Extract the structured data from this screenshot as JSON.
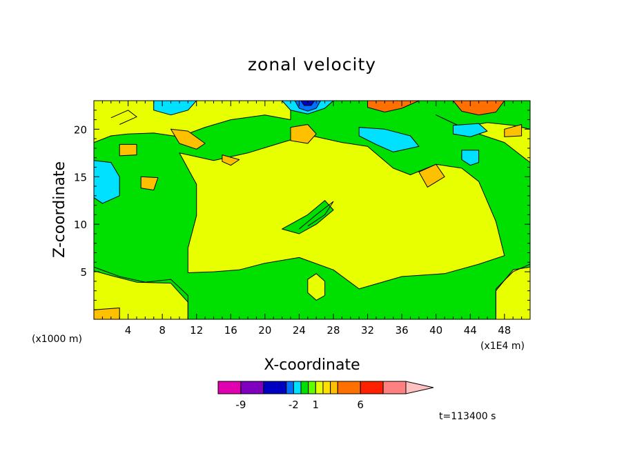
{
  "chart_data": {
    "type": "heatmap",
    "title": "zonal velocity",
    "xlabel": "X-coordinate",
    "ylabel": "Z-coordinate",
    "x_unit": "(x1E4 m)",
    "y_unit": "(x1000 m)",
    "xlim": [
      0,
      51
    ],
    "ylim": [
      0,
      23
    ],
    "x_ticks": [
      4,
      8,
      12,
      16,
      20,
      24,
      28,
      32,
      36,
      40,
      44,
      48
    ],
    "y_ticks": [
      5,
      10,
      15,
      20
    ],
    "time_label": "t=113400 s",
    "colorbar": {
      "levels": [
        -12,
        -9,
        -6,
        -3,
        -2,
        -1,
        0,
        1,
        2,
        3,
        4,
        6,
        8,
        10
      ],
      "colors": [
        "#e000b0",
        "#8000c0",
        "#0000c0",
        "#0070ff",
        "#00e0ff",
        "#00e000",
        "#60ff00",
        "#e8ff00",
        "#ffe000",
        "#ffc000",
        "#ff7000",
        "#ff2000",
        "#ff8080",
        "#ffc0c0"
      ],
      "labels": [
        {
          "text": "-9",
          "value": -9
        },
        {
          "text": "-2",
          "value": -2
        },
        {
          "text": "1",
          "value": 1
        },
        {
          "text": "6",
          "value": 6
        }
      ]
    },
    "background_color": "#00e000",
    "regions": [
      {
        "name": "yellow-main",
        "color": "#e8ff00",
        "points": [
          [
            10,
            17.5
          ],
          [
            14,
            16.7
          ],
          [
            18,
            17.5
          ],
          [
            22,
            18.6
          ],
          [
            25,
            19.4
          ],
          [
            29,
            18.6
          ],
          [
            32,
            18.2
          ],
          [
            35,
            15.9
          ],
          [
            37,
            15.2
          ],
          [
            40,
            16.3
          ],
          [
            43,
            15.9
          ],
          [
            45,
            14.5
          ],
          [
            46,
            12.4
          ],
          [
            47,
            10.3
          ],
          [
            48,
            6.7
          ],
          [
            45,
            5.8
          ],
          [
            41,
            4.8
          ],
          [
            36,
            4.5
          ],
          [
            31,
            3.2
          ],
          [
            28,
            5.2
          ],
          [
            24,
            6.5
          ],
          [
            20,
            5.9
          ],
          [
            17,
            5.2
          ],
          [
            14,
            5.0
          ],
          [
            11,
            4.9
          ],
          [
            11,
            7.5
          ],
          [
            12,
            10.9
          ],
          [
            12,
            14.2
          ],
          [
            10,
            17.5
          ]
        ]
      },
      {
        "name": "yellow-top",
        "color": "#e8ff00",
        "points": [
          [
            0,
            23
          ],
          [
            12,
            23
          ],
          [
            23,
            23
          ],
          [
            23,
            21
          ],
          [
            20,
            21.5
          ],
          [
            16,
            21
          ],
          [
            13,
            20.2
          ],
          [
            10,
            19.2
          ],
          [
            7,
            19.6
          ],
          [
            4,
            19.5
          ],
          [
            2,
            19.3
          ],
          [
            0,
            18.6
          ]
        ]
      },
      {
        "name": "yellow-right-top",
        "color": "#e8ff00",
        "points": [
          [
            40,
            21.5
          ],
          [
            43,
            20.2
          ],
          [
            46,
            20.7
          ],
          [
            49,
            20.4
          ],
          [
            51,
            20.0
          ],
          [
            51,
            16.5
          ],
          [
            48,
            18.6
          ],
          [
            44,
            19.8
          ],
          [
            40,
            21.5
          ]
        ]
      },
      {
        "name": "yellow-bottom-left",
        "color": "#e8ff00",
        "points": [
          [
            0,
            0
          ],
          [
            11,
            0
          ],
          [
            11,
            1.8
          ],
          [
            9,
            3.8
          ],
          [
            5,
            3.9
          ],
          [
            2,
            4.6
          ],
          [
            0,
            5.1
          ]
        ]
      },
      {
        "name": "yellow-bottom-right",
        "color": "#e8ff00",
        "points": [
          [
            47,
            0
          ],
          [
            51,
            0
          ],
          [
            51,
            5.5
          ],
          [
            49,
            5.2
          ],
          [
            47,
            3.0
          ]
        ]
      },
      {
        "name": "yellow-blob-bottom",
        "color": "#e8ff00",
        "points": [
          [
            25,
            4.2
          ],
          [
            26,
            4.8
          ],
          [
            27,
            4.0
          ],
          [
            27,
            2.5
          ],
          [
            26,
            2.0
          ],
          [
            25,
            2.8
          ]
        ]
      },
      {
        "name": "green-wedge",
        "color": "#00e000",
        "points": [
          [
            22,
            9.5
          ],
          [
            25,
            11.0
          ],
          [
            27,
            12.5
          ],
          [
            28,
            11.5
          ],
          [
            26,
            10.0
          ],
          [
            24,
            9.0
          ]
        ]
      },
      {
        "name": "cyan-left",
        "color": "#00e0ff",
        "points": [
          [
            0,
            16.7
          ],
          [
            2,
            16.5
          ],
          [
            3,
            15.0
          ],
          [
            3,
            13.0
          ],
          [
            1,
            12.2
          ],
          [
            0,
            12.8
          ]
        ]
      },
      {
        "name": "cyan-top-left",
        "color": "#00e0ff",
        "points": [
          [
            7,
            23
          ],
          [
            12,
            23
          ],
          [
            11,
            22.0
          ],
          [
            9,
            21.5
          ],
          [
            7,
            22.0
          ]
        ]
      },
      {
        "name": "cyan-right",
        "color": "#00e0ff",
        "points": [
          [
            31,
            20.2
          ],
          [
            34,
            20.0
          ],
          [
            37,
            19.3
          ],
          [
            38,
            18.2
          ],
          [
            35,
            17.6
          ],
          [
            33,
            18.4
          ],
          [
            31,
            19.3
          ]
        ]
      },
      {
        "name": "cyan-right-2",
        "color": "#00e0ff",
        "points": [
          [
            42,
            20.4
          ],
          [
            45,
            20.6
          ],
          [
            46,
            19.8
          ],
          [
            44,
            19.2
          ],
          [
            42,
            19.5
          ]
        ]
      },
      {
        "name": "cyan-right-3",
        "color": "#00e0ff",
        "points": [
          [
            43,
            17.8
          ],
          [
            45,
            17.8
          ],
          [
            45,
            16.5
          ],
          [
            44,
            16.2
          ],
          [
            43,
            16.8
          ]
        ]
      },
      {
        "name": "cyan-top-center",
        "color": "#00e0ff",
        "points": [
          [
            22,
            23
          ],
          [
            28,
            23
          ],
          [
            27,
            22.2
          ],
          [
            25,
            21.6
          ],
          [
            23,
            22.0
          ]
        ]
      },
      {
        "name": "blue-top",
        "color": "#0070ff",
        "points": [
          [
            23.5,
            23
          ],
          [
            26.5,
            23
          ],
          [
            26,
            22.2
          ],
          [
            25,
            21.9
          ],
          [
            24,
            22.2
          ]
        ]
      },
      {
        "name": "navy-top",
        "color": "#0000c0",
        "points": [
          [
            24.2,
            23
          ],
          [
            25.8,
            23
          ],
          [
            25.4,
            22.5
          ],
          [
            24.6,
            22.5
          ]
        ]
      },
      {
        "name": "gold-blob-1",
        "color": "#ffc000",
        "points": [
          [
            9,
            20.0
          ],
          [
            11,
            19.8
          ],
          [
            13,
            18.5
          ],
          [
            12,
            17.9
          ],
          [
            10,
            18.5
          ]
        ]
      },
      {
        "name": "gold-blob-2",
        "color": "#ffc000",
        "points": [
          [
            3,
            18.4
          ],
          [
            5,
            18.4
          ],
          [
            5,
            17.3
          ],
          [
            3,
            17.2
          ]
        ]
      },
      {
        "name": "gold-blob-3",
        "color": "#ffc000",
        "points": [
          [
            23,
            20.2
          ],
          [
            25,
            20.5
          ],
          [
            26,
            19.5
          ],
          [
            25,
            18.5
          ],
          [
            23,
            18.8
          ]
        ]
      },
      {
        "name": "gold-blob-4",
        "color": "#ffc000",
        "points": [
          [
            38,
            15.5
          ],
          [
            40,
            16.3
          ],
          [
            41,
            15.0
          ],
          [
            39,
            13.9
          ]
        ]
      },
      {
        "name": "gold-blob-5",
        "color": "#ffc000",
        "points": [
          [
            5.5,
            15.0
          ],
          [
            7.5,
            14.9
          ],
          [
            7,
            13.6
          ],
          [
            5.5,
            13.8
          ]
        ]
      },
      {
        "name": "gold-blob-6",
        "color": "#ffc000",
        "points": [
          [
            48,
            20.0
          ],
          [
            50,
            20.5
          ],
          [
            50,
            19.3
          ],
          [
            48,
            19.2
          ]
        ]
      },
      {
        "name": "gold-blob-7",
        "color": "#ffc000",
        "points": [
          [
            0,
            1.0
          ],
          [
            3,
            1.2
          ],
          [
            3,
            0
          ],
          [
            0,
            0
          ]
        ]
      },
      {
        "name": "gold-blob-8",
        "color": "#ffc000",
        "points": [
          [
            15,
            17.3
          ],
          [
            17,
            16.8
          ],
          [
            16,
            16.2
          ],
          [
            15,
            16.6
          ]
        ]
      },
      {
        "name": "orange-top-1",
        "color": "#ff7000",
        "points": [
          [
            32,
            23
          ],
          [
            38,
            23
          ],
          [
            36,
            22.2
          ],
          [
            34,
            21.8
          ],
          [
            32,
            22.3
          ]
        ]
      },
      {
        "name": "orange-top-2",
        "color": "#ff7000",
        "points": [
          [
            42,
            23
          ],
          [
            48,
            23
          ],
          [
            47,
            21.8
          ],
          [
            45,
            21.5
          ],
          [
            43,
            21.9
          ]
        ]
      }
    ],
    "contour_lines": [
      [
        [
          0,
          5.5
        ],
        [
          3,
          4.5
        ],
        [
          6,
          3.9
        ],
        [
          9,
          4.2
        ],
        [
          11,
          2.5
        ],
        [
          11,
          0
        ]
      ],
      [
        [
          47,
          0
        ],
        [
          47,
          3.2
        ],
        [
          49,
          5.0
        ],
        [
          51,
          5.8
        ]
      ],
      [
        [
          24,
          9.5
        ],
        [
          26,
          11.0
        ],
        [
          28,
          12.4
        ],
        [
          27,
          11.0
        ],
        [
          25,
          9.8
        ]
      ],
      [
        [
          2,
          21.2
        ],
        [
          4,
          22.0
        ],
        [
          5,
          21.3
        ],
        [
          3,
          20.5
        ]
      ]
    ]
  }
}
